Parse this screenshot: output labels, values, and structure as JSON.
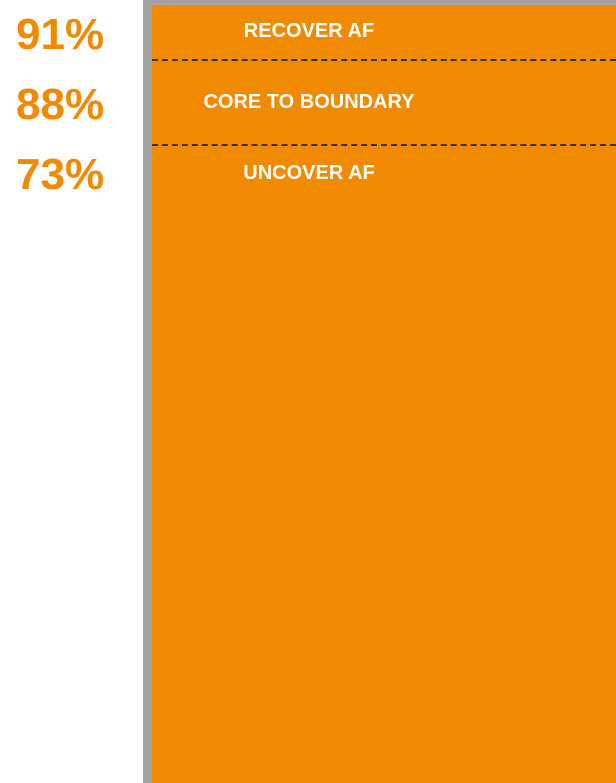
{
  "levels": [
    {
      "percent": "91%",
      "label": "RECOVER AF"
    },
    {
      "percent": "88%",
      "label": "CORE TO BOUNDARY"
    },
    {
      "percent": "73%",
      "label": "UNCOVER AF"
    }
  ]
}
